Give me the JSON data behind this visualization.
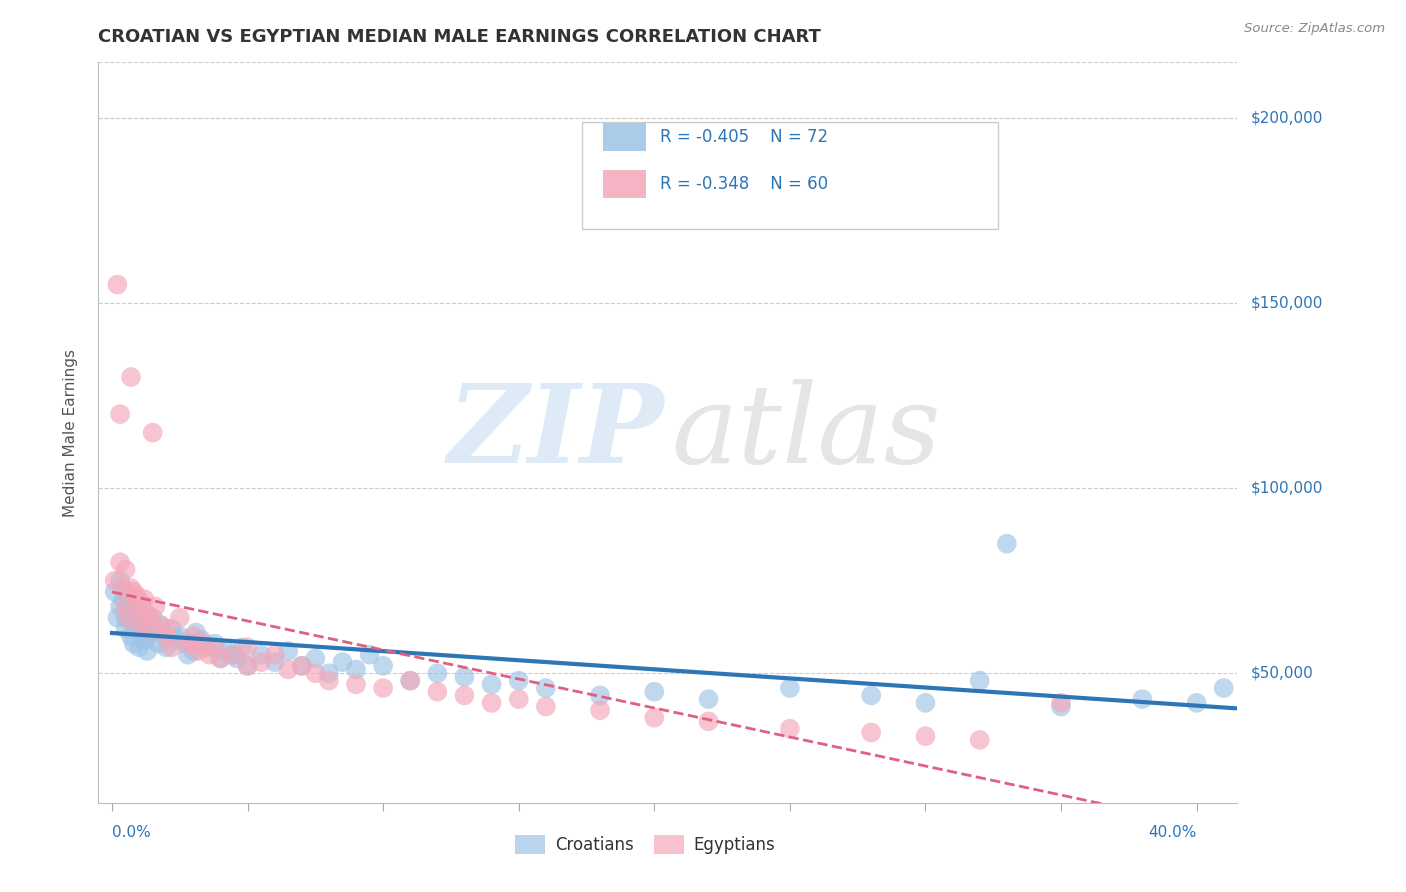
{
  "title": "CROATIAN VS EGYPTIAN MEDIAN MALE EARNINGS CORRELATION CHART",
  "source_text": "Source: ZipAtlas.com",
  "ylabel": "Median Male Earnings",
  "y_tick_labels": [
    "$50,000",
    "$100,000",
    "$150,000",
    "$200,000"
  ],
  "y_tick_values": [
    50000,
    100000,
    150000,
    200000
  ],
  "y_min": 15000,
  "y_max": 215000,
  "x_min": -0.005,
  "x_max": 0.415,
  "croatian_color": "#9dc3e6",
  "egyptian_color": "#f4a7b9",
  "regression_blue_color": "#2e75b6",
  "regression_pink_color": "#e06080",
  "legend_text_color": "#2e75b6",
  "title_color": "#333333",
  "background_color": "#ffffff",
  "grid_color": "#cccccc",
  "croatian_R": -0.405,
  "croatian_N": 72,
  "egyptian_R": -0.348,
  "egyptian_N": 60,
  "croatian_x": [
    0.001,
    0.002,
    0.003,
    0.003,
    0.004,
    0.005,
    0.005,
    0.006,
    0.006,
    0.007,
    0.007,
    0.008,
    0.008,
    0.009,
    0.009,
    0.01,
    0.01,
    0.011,
    0.011,
    0.012,
    0.012,
    0.013,
    0.013,
    0.015,
    0.016,
    0.017,
    0.018,
    0.02,
    0.022,
    0.024,
    0.025,
    0.027,
    0.028,
    0.03,
    0.031,
    0.033,
    0.035,
    0.038,
    0.04,
    0.042,
    0.044,
    0.046,
    0.048,
    0.05,
    0.055,
    0.06,
    0.065,
    0.07,
    0.075,
    0.08,
    0.085,
    0.09,
    0.095,
    0.1,
    0.11,
    0.12,
    0.13,
    0.14,
    0.15,
    0.16,
    0.18,
    0.2,
    0.22,
    0.25,
    0.28,
    0.3,
    0.32,
    0.35,
    0.38,
    0.4,
    0.33,
    0.41
  ],
  "croatian_y": [
    72000,
    65000,
    68000,
    75000,
    70000,
    65000,
    62000,
    68000,
    71000,
    60000,
    64000,
    58000,
    66000,
    62000,
    69000,
    57000,
    63000,
    61000,
    67000,
    59000,
    64000,
    60000,
    56000,
    65000,
    61000,
    58000,
    63000,
    57000,
    62000,
    59000,
    60000,
    58000,
    55000,
    56000,
    61000,
    59000,
    57000,
    58000,
    54000,
    56000,
    55000,
    54000,
    57000,
    52000,
    55000,
    53000,
    56000,
    52000,
    54000,
    50000,
    53000,
    51000,
    55000,
    52000,
    48000,
    50000,
    49000,
    47000,
    48000,
    46000,
    44000,
    45000,
    43000,
    46000,
    44000,
    42000,
    48000,
    41000,
    43000,
    42000,
    85000,
    46000
  ],
  "egyptian_x": [
    0.001,
    0.002,
    0.003,
    0.004,
    0.005,
    0.006,
    0.007,
    0.008,
    0.009,
    0.01,
    0.011,
    0.012,
    0.013,
    0.014,
    0.015,
    0.016,
    0.018,
    0.02,
    0.022,
    0.025,
    0.028,
    0.03,
    0.032,
    0.034,
    0.036,
    0.038,
    0.04,
    0.045,
    0.05,
    0.055,
    0.06,
    0.065,
    0.07,
    0.075,
    0.08,
    0.09,
    0.1,
    0.11,
    0.12,
    0.13,
    0.14,
    0.15,
    0.16,
    0.18,
    0.2,
    0.22,
    0.25,
    0.28,
    0.3,
    0.32,
    0.003,
    0.005,
    0.007,
    0.009,
    0.011,
    0.013,
    0.02,
    0.03,
    0.05,
    0.35
  ],
  "egyptian_y": [
    75000,
    155000,
    120000,
    73000,
    68000,
    65000,
    130000,
    72000,
    70000,
    63000,
    67000,
    70000,
    62000,
    65000,
    115000,
    68000,
    63000,
    60000,
    57000,
    65000,
    58000,
    60000,
    56000,
    58000,
    55000,
    57000,
    54000,
    55000,
    57000,
    53000,
    55000,
    51000,
    52000,
    50000,
    48000,
    47000,
    46000,
    48000,
    45000,
    44000,
    42000,
    43000,
    41000,
    40000,
    38000,
    37000,
    35000,
    34000,
    33000,
    32000,
    80000,
    78000,
    73000,
    71000,
    69000,
    66000,
    62000,
    58000,
    52000,
    42000
  ]
}
